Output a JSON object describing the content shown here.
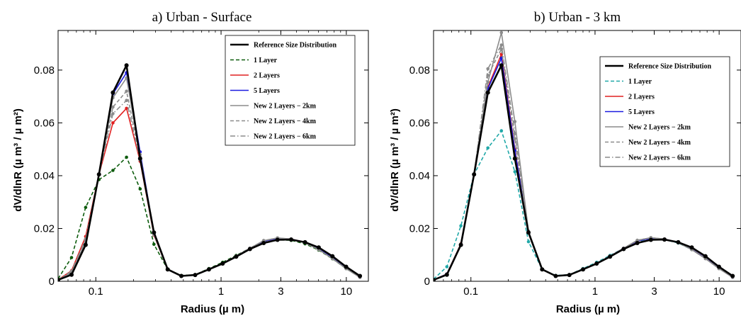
{
  "chart_data": [
    {
      "type": "line",
      "title": "a) Urban - Surface",
      "xlabel": "Radius (µ m)",
      "ylabel": "dV/dlnR (µ m³ / µ m²)",
      "xscale": "log",
      "xlim": [
        0.05,
        15
      ],
      "ylim": [
        0,
        0.095
      ],
      "xticks": [
        0.1,
        1,
        3,
        10
      ],
      "xtick_labels": [
        "0.1",
        "1",
        "3",
        "10"
      ],
      "yticks": [
        0,
        0.02,
        0.04,
        0.06,
        0.08
      ],
      "ytick_labels": [
        "0",
        "0.02",
        "0.04",
        "0.06",
        "0.08"
      ],
      "legend_position": "top-right",
      "series": [
        {
          "name": "Reference Size Distribution",
          "color": "#000000",
          "dash": "solid",
          "width": 2.6,
          "x": [
            0.05,
            0.064,
            0.083,
            0.106,
            0.137,
            0.176,
            0.226,
            0.291,
            0.375,
            0.482,
            0.621,
            0.8,
            1.03,
            1.32,
            1.7,
            2.19,
            2.82,
            3.63,
            4.68,
            6.02,
            7.75,
            9.97,
            12.84
          ],
          "y": [
            0.0005,
            0.0025,
            0.0138,
            0.0405,
            0.0715,
            0.0818,
            0.0465,
            0.0185,
            0.0045,
            0.002,
            0.0024,
            0.0045,
            0.0067,
            0.0093,
            0.0122,
            0.0145,
            0.0157,
            0.0158,
            0.0148,
            0.0128,
            0.0095,
            0.0055,
            0.002
          ]
        },
        {
          "name": "1 Layer",
          "color": "#0d5c0d",
          "dash": "dashed",
          "width": 1.6,
          "x": [
            0.05,
            0.064,
            0.083,
            0.106,
            0.137,
            0.176,
            0.226,
            0.291,
            0.375,
            0.482,
            0.621,
            0.8,
            1.03,
            1.32,
            1.7,
            2.19,
            2.82,
            3.63,
            4.68,
            6.02,
            7.75,
            9.97,
            12.84
          ],
          "y": [
            0.001,
            0.009,
            0.028,
            0.0385,
            0.042,
            0.047,
            0.035,
            0.014,
            0.0045,
            0.0022,
            0.0025,
            0.0048,
            0.0072,
            0.0098,
            0.0125,
            0.0147,
            0.0157,
            0.0155,
            0.0142,
            0.0118,
            0.0085,
            0.0048,
            0.0015
          ]
        },
        {
          "name": "2 Layers",
          "color": "#e02020",
          "dash": "solid",
          "width": 1.6,
          "x": [
            0.05,
            0.064,
            0.083,
            0.106,
            0.137,
            0.176,
            0.226,
            0.291,
            0.375,
            0.482,
            0.621,
            0.8,
            1.03,
            1.32,
            1.7,
            2.19,
            2.82,
            3.63,
            4.68,
            6.02,
            7.75,
            9.97,
            12.84
          ],
          "y": [
            0.0006,
            0.004,
            0.017,
            0.0405,
            0.06,
            0.0655,
            0.0455,
            0.0175,
            0.0045,
            0.002,
            0.0024,
            0.0046,
            0.0068,
            0.0095,
            0.0125,
            0.0152,
            0.0162,
            0.016,
            0.0148,
            0.0122,
            0.0088,
            0.005,
            0.0015
          ]
        },
        {
          "name": "5 Layers",
          "color": "#1a1ae0",
          "dash": "solid",
          "width": 1.6,
          "x": [
            0.05,
            0.064,
            0.083,
            0.106,
            0.137,
            0.176,
            0.226,
            0.291,
            0.375,
            0.482,
            0.621,
            0.8,
            1.03,
            1.32,
            1.7,
            2.19,
            2.82,
            3.63,
            4.68,
            6.02,
            7.75,
            9.97,
            12.84
          ],
          "y": [
            0.0005,
            0.003,
            0.0145,
            0.0405,
            0.071,
            0.079,
            0.049,
            0.018,
            0.0045,
            0.002,
            0.0024,
            0.0046,
            0.0068,
            0.0095,
            0.0125,
            0.0152,
            0.0162,
            0.016,
            0.0147,
            0.0122,
            0.0088,
            0.005,
            0.0015
          ]
        },
        {
          "name": "New 2 Layers − 2km",
          "color": "#8c8c8c",
          "dash": "solid",
          "width": 1.6,
          "x": [
            0.05,
            0.064,
            0.083,
            0.106,
            0.137,
            0.176,
            0.226,
            0.291,
            0.375,
            0.482,
            0.621,
            0.8,
            1.03,
            1.32,
            1.7,
            2.19,
            2.82,
            3.63,
            4.68,
            6.02,
            7.75,
            9.97,
            12.84
          ],
          "y": [
            0.0005,
            0.0032,
            0.0148,
            0.0405,
            0.0695,
            0.077,
            0.048,
            0.018,
            0.0045,
            0.002,
            0.0024,
            0.0046,
            0.0068,
            0.0095,
            0.0125,
            0.0154,
            0.0164,
            0.016,
            0.0146,
            0.012,
            0.0086,
            0.0048,
            0.0015
          ]
        },
        {
          "name": "New 2 Layers − 4km",
          "color": "#8c8c8c",
          "dash": "dashed",
          "width": 1.6,
          "x": [
            0.05,
            0.064,
            0.083,
            0.106,
            0.137,
            0.176,
            0.226,
            0.291,
            0.375,
            0.482,
            0.621,
            0.8,
            1.03,
            1.32,
            1.7,
            2.19,
            2.82,
            3.63,
            4.68,
            6.02,
            7.75,
            9.97,
            12.84
          ],
          "y": [
            0.0005,
            0.0035,
            0.0155,
            0.0405,
            0.066,
            0.072,
            0.047,
            0.0178,
            0.0045,
            0.002,
            0.0024,
            0.0046,
            0.0068,
            0.0095,
            0.0125,
            0.0154,
            0.0164,
            0.016,
            0.0146,
            0.012,
            0.0086,
            0.0048,
            0.0015
          ]
        },
        {
          "name": "New 2 Layers − 6km",
          "color": "#8c8c8c",
          "dash": "dashdot",
          "width": 1.6,
          "x": [
            0.05,
            0.064,
            0.083,
            0.106,
            0.137,
            0.176,
            0.226,
            0.291,
            0.375,
            0.482,
            0.621,
            0.8,
            1.03,
            1.32,
            1.7,
            2.19,
            2.82,
            3.63,
            4.68,
            6.02,
            7.75,
            9.97,
            12.84
          ],
          "y": [
            0.0005,
            0.0038,
            0.016,
            0.0405,
            0.0635,
            0.0685,
            0.046,
            0.0176,
            0.0045,
            0.002,
            0.0024,
            0.0046,
            0.0068,
            0.0095,
            0.0125,
            0.0154,
            0.0164,
            0.016,
            0.0146,
            0.012,
            0.0086,
            0.0048,
            0.0015
          ]
        }
      ]
    },
    {
      "type": "line",
      "title": "b) Urban - 3 km",
      "xlabel": "Radius (µ m)",
      "ylabel": "dV/dlnR (µ m³ / µ m²)",
      "xscale": "log",
      "xlim": [
        0.05,
        15
      ],
      "ylim": [
        0,
        0.095
      ],
      "xticks": [
        0.1,
        1,
        3,
        10
      ],
      "xtick_labels": [
        "0.1",
        "1",
        "3",
        "10"
      ],
      "yticks": [
        0,
        0.02,
        0.04,
        0.06,
        0.08
      ],
      "ytick_labels": [
        "0",
        "0.02",
        "0.04",
        "0.06",
        "0.08"
      ],
      "legend_position": "top-right",
      "series": [
        {
          "name": "Reference Size Distribution",
          "color": "#000000",
          "dash": "solid",
          "width": 2.6,
          "x": [
            0.05,
            0.064,
            0.083,
            0.106,
            0.137,
            0.176,
            0.226,
            0.291,
            0.375,
            0.482,
            0.621,
            0.8,
            1.03,
            1.32,
            1.7,
            2.19,
            2.82,
            3.63,
            4.68,
            6.02,
            7.75,
            9.97,
            12.84
          ],
          "y": [
            0.0005,
            0.0025,
            0.0138,
            0.0405,
            0.0715,
            0.0818,
            0.0465,
            0.0185,
            0.0045,
            0.002,
            0.0024,
            0.0045,
            0.0067,
            0.0093,
            0.0122,
            0.0145,
            0.0157,
            0.0158,
            0.0148,
            0.0128,
            0.0095,
            0.0055,
            0.002
          ]
        },
        {
          "name": "1 Layer",
          "color": "#20a8a8",
          "dash": "dashed",
          "width": 1.6,
          "x": [
            0.05,
            0.064,
            0.083,
            0.106,
            0.137,
            0.176,
            0.226,
            0.291,
            0.375,
            0.482,
            0.621,
            0.8,
            1.03,
            1.32,
            1.7,
            2.19,
            2.82,
            3.63,
            4.68,
            6.02,
            7.75,
            9.97,
            12.84
          ],
          "y": [
            0.0008,
            0.0055,
            0.021,
            0.0405,
            0.0505,
            0.057,
            0.0415,
            0.015,
            0.0045,
            0.0022,
            0.0025,
            0.0048,
            0.0072,
            0.0098,
            0.0125,
            0.015,
            0.016,
            0.0158,
            0.0145,
            0.012,
            0.0087,
            0.005,
            0.0015
          ]
        },
        {
          "name": "2 Layers",
          "color": "#e02020",
          "dash": "solid",
          "width": 1.6,
          "x": [
            0.05,
            0.064,
            0.083,
            0.106,
            0.137,
            0.176,
            0.226,
            0.291,
            0.375,
            0.482,
            0.621,
            0.8,
            1.03,
            1.32,
            1.7,
            2.19,
            2.82,
            3.63,
            4.68,
            6.02,
            7.75,
            9.97,
            12.84
          ],
          "y": [
            0.0005,
            0.0028,
            0.0142,
            0.0405,
            0.0735,
            0.086,
            0.05,
            0.0185,
            0.0045,
            0.002,
            0.0024,
            0.0046,
            0.0068,
            0.0095,
            0.0125,
            0.0153,
            0.0163,
            0.016,
            0.0147,
            0.0121,
            0.0087,
            0.0049,
            0.0015
          ]
        },
        {
          "name": "5 Layers",
          "color": "#1a1ae0",
          "dash": "solid",
          "width": 1.6,
          "x": [
            0.05,
            0.064,
            0.083,
            0.106,
            0.137,
            0.176,
            0.226,
            0.291,
            0.375,
            0.482,
            0.621,
            0.8,
            1.03,
            1.32,
            1.7,
            2.19,
            2.82,
            3.63,
            4.68,
            6.02,
            7.75,
            9.97,
            12.84
          ],
          "y": [
            0.0005,
            0.0028,
            0.014,
            0.0405,
            0.073,
            0.0845,
            0.0495,
            0.0185,
            0.0045,
            0.002,
            0.0024,
            0.0046,
            0.0068,
            0.0095,
            0.0125,
            0.0153,
            0.0163,
            0.016,
            0.0147,
            0.0121,
            0.0087,
            0.0049,
            0.0015
          ]
        },
        {
          "name": "New 2 Layers − 2km",
          "color": "#8c8c8c",
          "dash": "solid",
          "width": 1.6,
          "x": [
            0.05,
            0.064,
            0.083,
            0.106,
            0.137,
            0.176,
            0.226,
            0.291,
            0.375,
            0.482,
            0.621,
            0.8,
            1.03,
            1.32,
            1.7,
            2.19,
            2.82,
            3.63,
            4.68,
            6.02,
            7.75,
            9.97,
            12.84
          ],
          "y": [
            0.0005,
            0.0027,
            0.014,
            0.0405,
            0.0755,
            0.0942,
            0.0605,
            0.019,
            0.0045,
            0.002,
            0.0024,
            0.0046,
            0.0068,
            0.0095,
            0.0125,
            0.0155,
            0.0165,
            0.016,
            0.0146,
            0.012,
            0.0086,
            0.0048,
            0.0015
          ]
        },
        {
          "name": "New 2 Layers − 4km",
          "color": "#8c8c8c",
          "dash": "dashed",
          "width": 1.6,
          "x": [
            0.05,
            0.064,
            0.083,
            0.106,
            0.137,
            0.176,
            0.226,
            0.291,
            0.375,
            0.482,
            0.621,
            0.8,
            1.03,
            1.32,
            1.7,
            2.19,
            2.82,
            3.63,
            4.68,
            6.02,
            7.75,
            9.97,
            12.84
          ],
          "y": [
            0.0005,
            0.0027,
            0.014,
            0.0405,
            0.078,
            0.088,
            0.054,
            0.0188,
            0.0045,
            0.002,
            0.0024,
            0.0046,
            0.0068,
            0.0095,
            0.0125,
            0.0155,
            0.0165,
            0.016,
            0.0146,
            0.012,
            0.0086,
            0.0048,
            0.0015
          ]
        },
        {
          "name": "New 2 Layers − 6km",
          "color": "#8c8c8c",
          "dash": "dashdot",
          "width": 1.6,
          "x": [
            0.05,
            0.064,
            0.083,
            0.106,
            0.137,
            0.176,
            0.226,
            0.291,
            0.375,
            0.482,
            0.621,
            0.8,
            1.03,
            1.32,
            1.7,
            2.19,
            2.82,
            3.63,
            4.68,
            6.02,
            7.75,
            9.97,
            12.84
          ],
          "y": [
            0.0005,
            0.0027,
            0.014,
            0.0405,
            0.0805,
            0.0895,
            0.056,
            0.0188,
            0.0045,
            0.002,
            0.0024,
            0.0046,
            0.0068,
            0.0095,
            0.0125,
            0.0155,
            0.0165,
            0.016,
            0.0146,
            0.012,
            0.0086,
            0.0048,
            0.0015
          ]
        }
      ]
    }
  ]
}
